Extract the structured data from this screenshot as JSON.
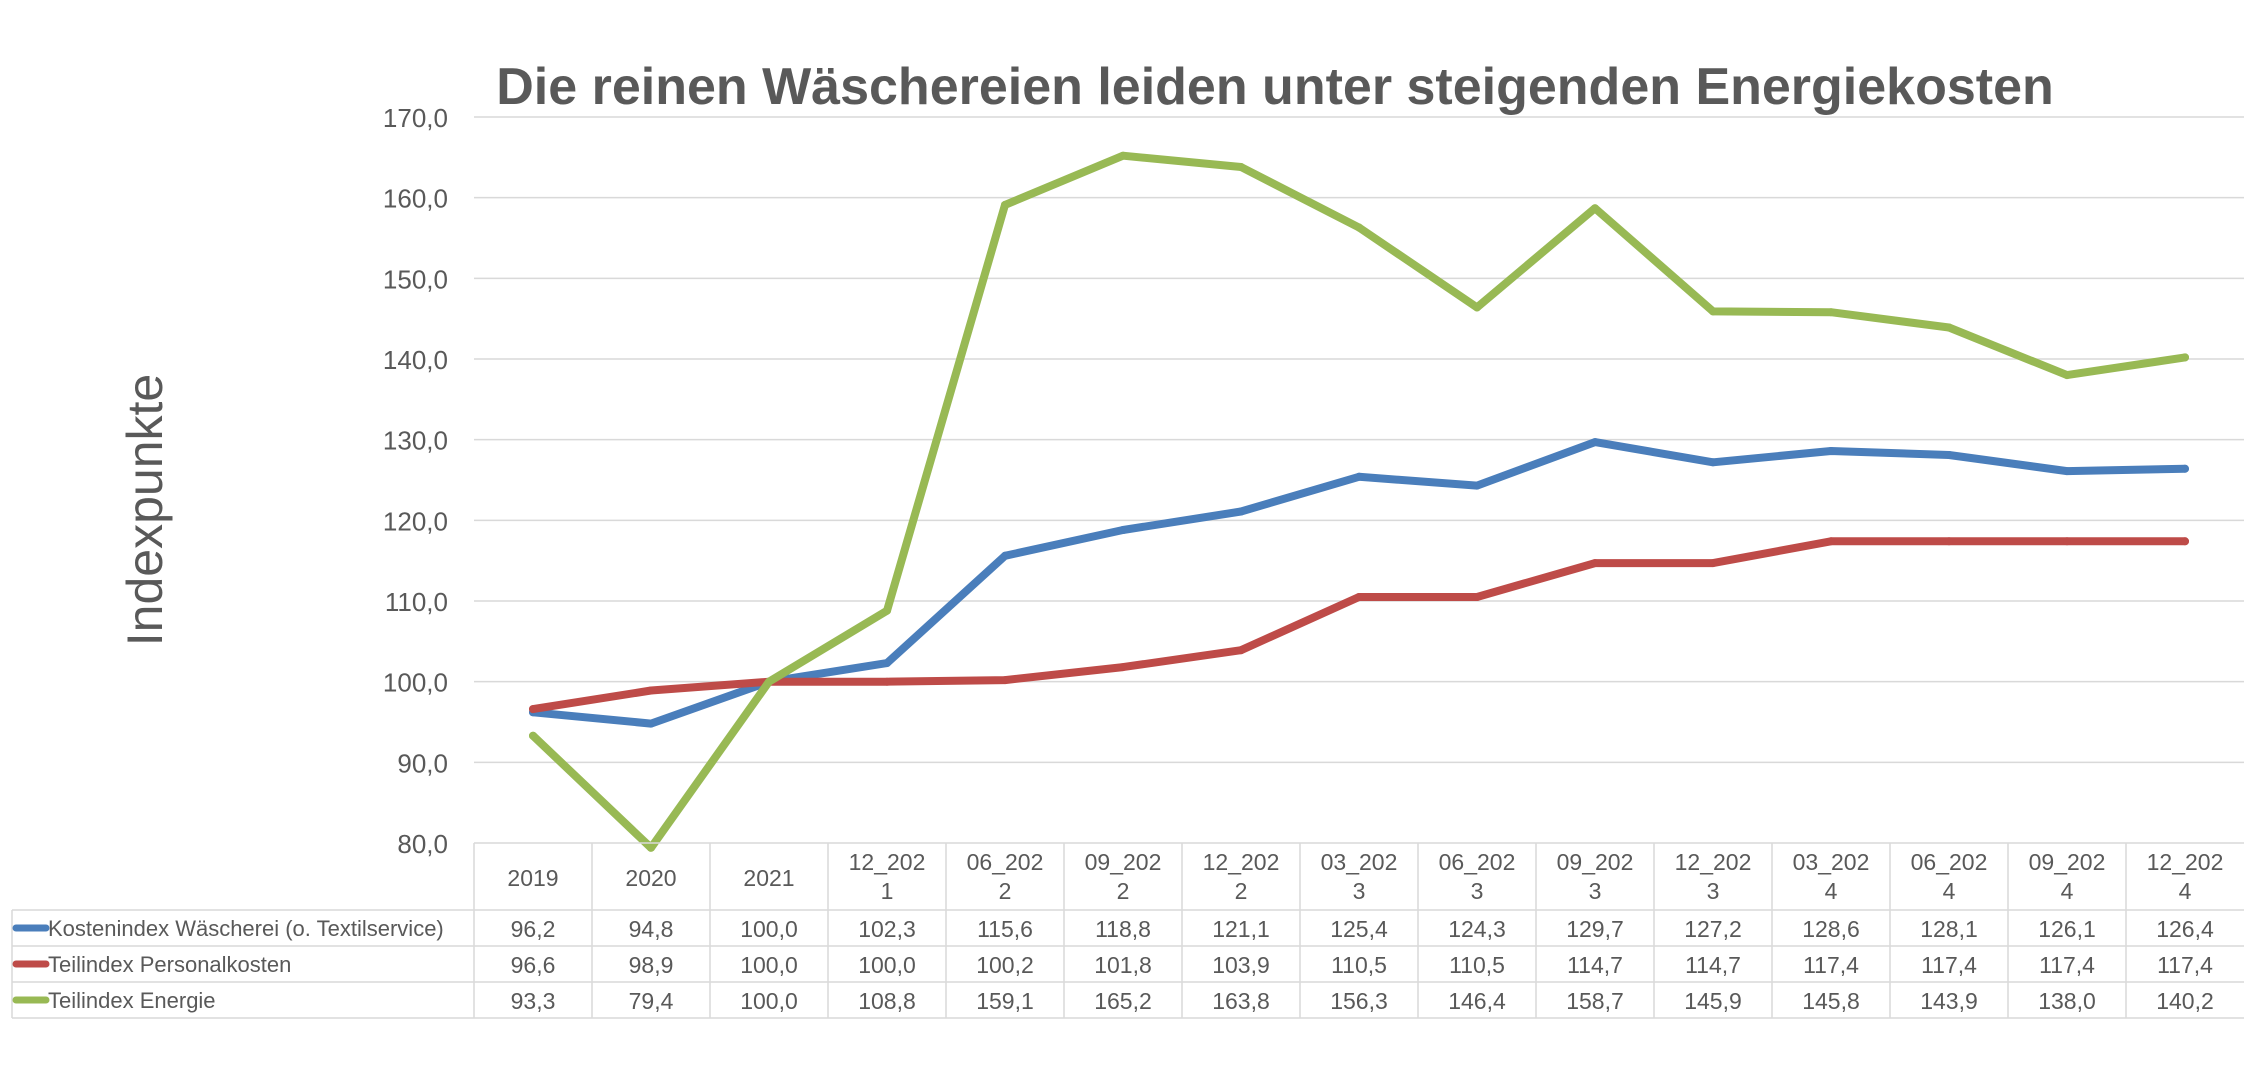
{
  "chart_data": {
    "type": "line",
    "title": "Die reinen Wäschereien leiden unter steigenden Energiekosten",
    "ylabel": "Indexpunkte",
    "xlabel": "",
    "ylim": [
      80,
      170
    ],
    "y_ticks": [
      "80,0",
      "90,0",
      "100,0",
      "110,0",
      "120,0",
      "130,0",
      "140,0",
      "150,0",
      "160,0",
      "170,0"
    ],
    "grid": true,
    "legend_placement": "data table, left of rows",
    "categories": [
      [
        "2019"
      ],
      [
        "2020"
      ],
      [
        "2021"
      ],
      [
        "12_202",
        "1"
      ],
      [
        "06_202",
        "2"
      ],
      [
        "09_202",
        "2"
      ],
      [
        "12_202",
        "2"
      ],
      [
        "03_202",
        "3"
      ],
      [
        "06_202",
        "3"
      ],
      [
        "09_202",
        "3"
      ],
      [
        "12_202",
        "3"
      ],
      [
        "03_202",
        "4"
      ],
      [
        "06_202",
        "4"
      ],
      [
        "09_202",
        "4"
      ],
      [
        "12_202",
        "4"
      ]
    ],
    "series": [
      {
        "name": "Kostenindex Wäscherei (o. Textilservice)",
        "color": "#4A7EBB",
        "values": [
          96.2,
          94.8,
          100.0,
          102.3,
          115.6,
          118.8,
          121.1,
          125.4,
          124.3,
          129.7,
          127.2,
          128.6,
          128.1,
          126.1,
          126.4
        ],
        "labels": [
          "96,2",
          "94,8",
          "100,0",
          "102,3",
          "115,6",
          "118,8",
          "121,1",
          "125,4",
          "124,3",
          "129,7",
          "127,2",
          "128,6",
          "128,1",
          "126,1",
          "126,4"
        ]
      },
      {
        "name": "Teilindex Personalkosten",
        "color": "#BE4B48",
        "values": [
          96.6,
          98.9,
          100.0,
          100.0,
          100.2,
          101.8,
          103.9,
          110.5,
          110.5,
          114.7,
          114.7,
          117.4,
          117.4,
          117.4,
          117.4
        ],
        "labels": [
          "96,6",
          "98,9",
          "100,0",
          "100,0",
          "100,2",
          "101,8",
          "103,9",
          "110,5",
          "110,5",
          "114,7",
          "114,7",
          "117,4",
          "117,4",
          "117,4",
          "117,4"
        ]
      },
      {
        "name": "Teilindex Energie",
        "color": "#98B954",
        "values": [
          93.3,
          79.4,
          100.0,
          108.8,
          159.1,
          165.2,
          163.8,
          156.3,
          146.4,
          158.7,
          145.9,
          145.8,
          143.9,
          138.0,
          140.2
        ],
        "labels": [
          "93,3",
          "79,4",
          "100,0",
          "108,8",
          "159,1",
          "165,2",
          "163,8",
          "156,3",
          "146,4",
          "158,7",
          "145,9",
          "145,8",
          "143,9",
          "138,0",
          "140,2"
        ]
      }
    ]
  },
  "colors": {
    "text": "#595959",
    "gridline": "#D9D9D9",
    "table_border": "#D9D9D9"
  }
}
